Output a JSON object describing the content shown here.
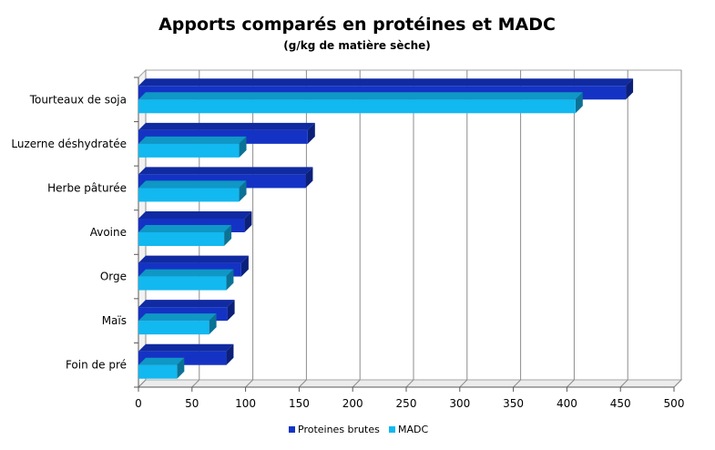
{
  "chart_data": {
    "type": "bar",
    "orientation": "horizontal",
    "title": "Apports comparés en protéines et MADC",
    "subtitle": "(g/kg de matière sèche)",
    "categories": [
      "Tourteaux de soja",
      "Luzerne déshydratée",
      "Herbe pâturée",
      "Avoine",
      "Orge",
      "Maïs",
      "Foin de pré"
    ],
    "series": [
      {
        "name": "Proteines brutes",
        "color": "#1433c4",
        "values": [
          455,
          158,
          156,
          99,
          96,
          83,
          82
        ]
      },
      {
        "name": "MADC",
        "color": "#12b8f0",
        "values": [
          408,
          94,
          94,
          80,
          82,
          66,
          36
        ]
      }
    ],
    "xlim": [
      0,
      500
    ],
    "xticks": [
      0,
      50,
      100,
      150,
      200,
      250,
      300,
      350,
      400,
      450,
      500
    ],
    "grid": true,
    "legend_position": "bottom"
  }
}
